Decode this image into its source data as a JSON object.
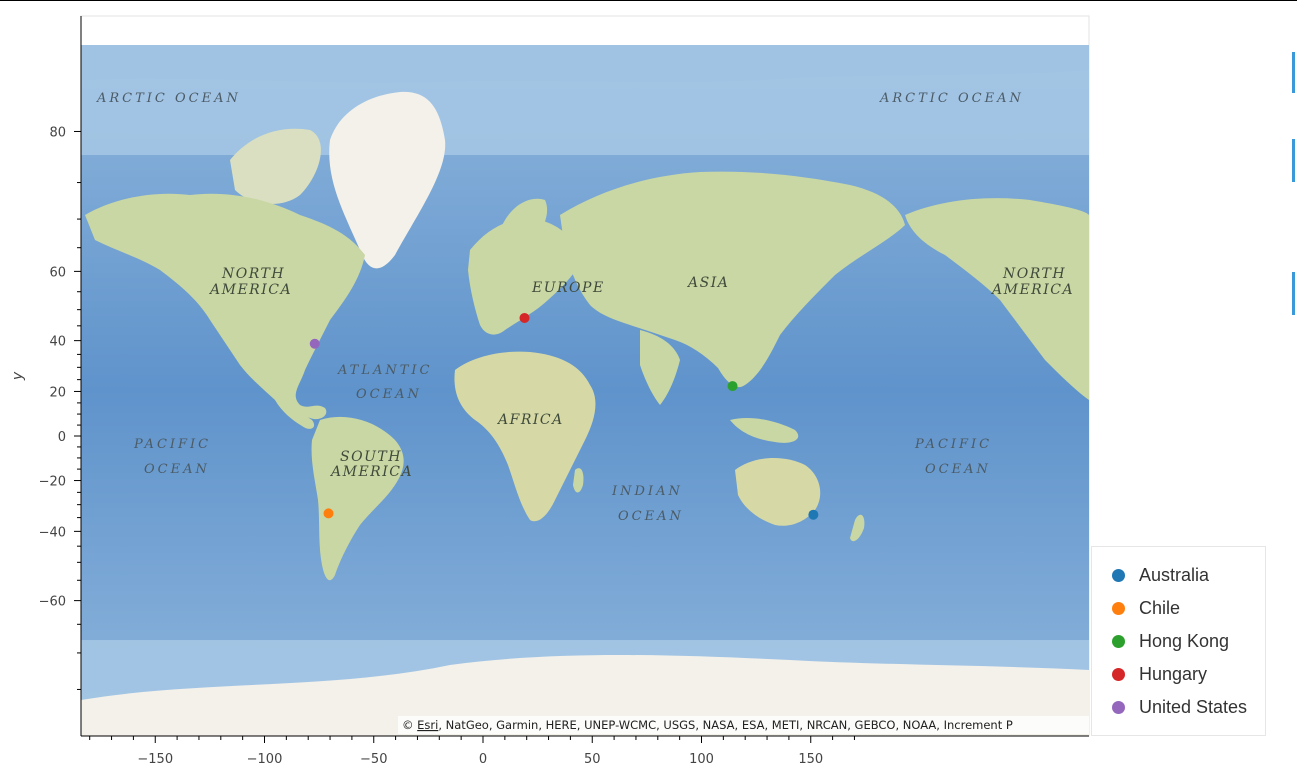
{
  "map": {
    "y_axis_title": "y",
    "attribution": {
      "prefix": "© ",
      "link": "Esri",
      "rest": ", NatGeo, Garmin, HERE, UNEP-WCMC, USGS, NASA, ESA, METI, NRCAN, GEBCO, NOAA, Increment P"
    },
    "ocean_labels": {
      "arctic_left": "ARCTIC OCEAN",
      "arctic_right": "ARCTIC OCEAN",
      "atlantic": [
        "ATLANTIC",
        "OCEAN"
      ],
      "pacific_left": [
        "PACIFIC",
        "OCEAN"
      ],
      "pacific_right": [
        "PACIFIC",
        "OCEAN"
      ],
      "indian": [
        "INDIAN",
        "OCEAN"
      ]
    },
    "continent_labels": {
      "north_america_left": [
        "NORTH",
        "AMERICA"
      ],
      "north_america_right": [
        "NORTH",
        "AMERICA"
      ],
      "south_america": [
        "SOUTH",
        "AMERICA"
      ],
      "europe": "EUROPE",
      "asia": "ASIA",
      "africa": "AFRICA"
    },
    "colors": {
      "ocean": "#a7c9e6",
      "deep_ocean": "#6f9fd0",
      "land": "#c9d7a4",
      "ice": "#f3f1ea"
    }
  },
  "chart_data": {
    "type": "scatter",
    "xlabel": "",
    "ylabel": "y",
    "xlim": [
      -185,
      280
    ],
    "x_ticks": [
      -150,
      -100,
      -50,
      0,
      50,
      100,
      150
    ],
    "y_ticks": [
      80,
      60,
      40,
      20,
      0,
      -20,
      -40,
      -60
    ],
    "y_scale": "web-mercator",
    "grid": false,
    "legend_position": "right",
    "series": [
      {
        "name": "Australia",
        "color": "#1f77b4",
        "x": 151.2,
        "y": -33.9
      },
      {
        "name": "Chile",
        "color": "#ff7f0e",
        "x": -70.7,
        "y": -33.4
      },
      {
        "name": "Hong Kong",
        "color": "#2ca02c",
        "x": 114.2,
        "y": 22.3
      },
      {
        "name": "Hungary",
        "color": "#d62728",
        "x": 19.0,
        "y": 47.5
      },
      {
        "name": "United States",
        "color": "#9467bd",
        "x": -77.0,
        "y": 38.9
      }
    ]
  }
}
